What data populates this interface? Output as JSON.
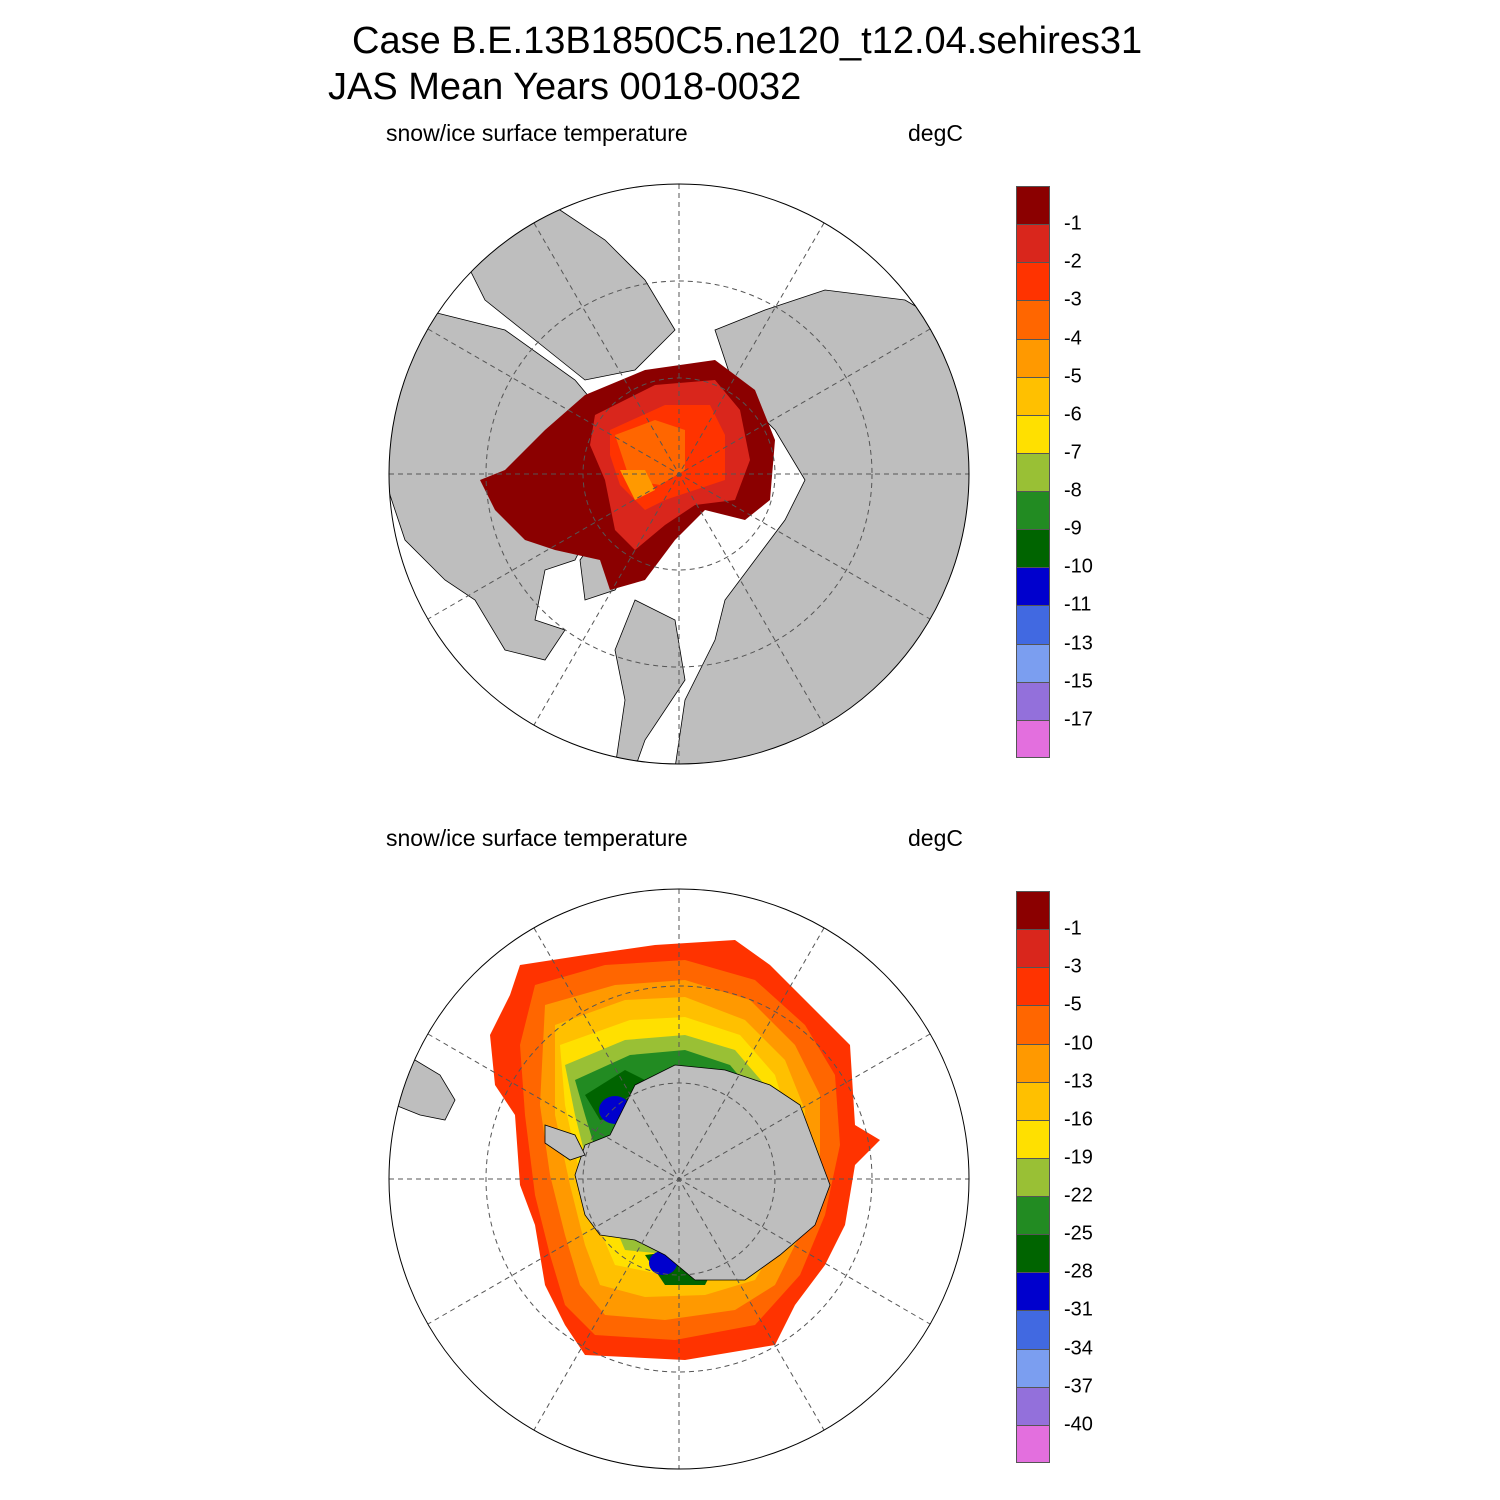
{
  "header": {
    "case_line": "Case B.E.13B1850C5.ne120_t12.04.sehires31",
    "period_line": "JAS Mean   Years 0018-0032"
  },
  "panels": [
    {
      "hemisphere": "north",
      "variable": "snow/ice surface temperature",
      "units": "degC",
      "colorbar": {
        "colors": [
          "#8b0000",
          "#d9261c",
          "#ff3300",
          "#ff6600",
          "#ff9900",
          "#ffc000",
          "#ffe000",
          "#99c035",
          "#228b22",
          "#006400",
          "#0000cd",
          "#4169e1",
          "#7b9ef0",
          "#9370db",
          "#e36fde"
        ],
        "labels": [
          "-1",
          "-2",
          "-3",
          "-4",
          "-5",
          "-6",
          "-7",
          "-8",
          "-9",
          "-10",
          "-11",
          "-13",
          "-15",
          "-17"
        ]
      }
    },
    {
      "hemisphere": "south",
      "variable": "snow/ice surface temperature",
      "units": "degC",
      "colorbar": {
        "colors": [
          "#8b0000",
          "#d9261c",
          "#ff3300",
          "#ff6600",
          "#ff9900",
          "#ffc000",
          "#ffe000",
          "#99c035",
          "#228b22",
          "#006400",
          "#0000cd",
          "#4169e1",
          "#7b9ef0",
          "#9370db",
          "#e36fde"
        ],
        "labels": [
          "-1",
          "-3",
          "-5",
          "-10",
          "-13",
          "-16",
          "-19",
          "-22",
          "-25",
          "-28",
          "-31",
          "-34",
          "-37",
          "-40"
        ]
      }
    }
  ],
  "style": {
    "land": "#bebebe",
    "grid": "#555555"
  }
}
